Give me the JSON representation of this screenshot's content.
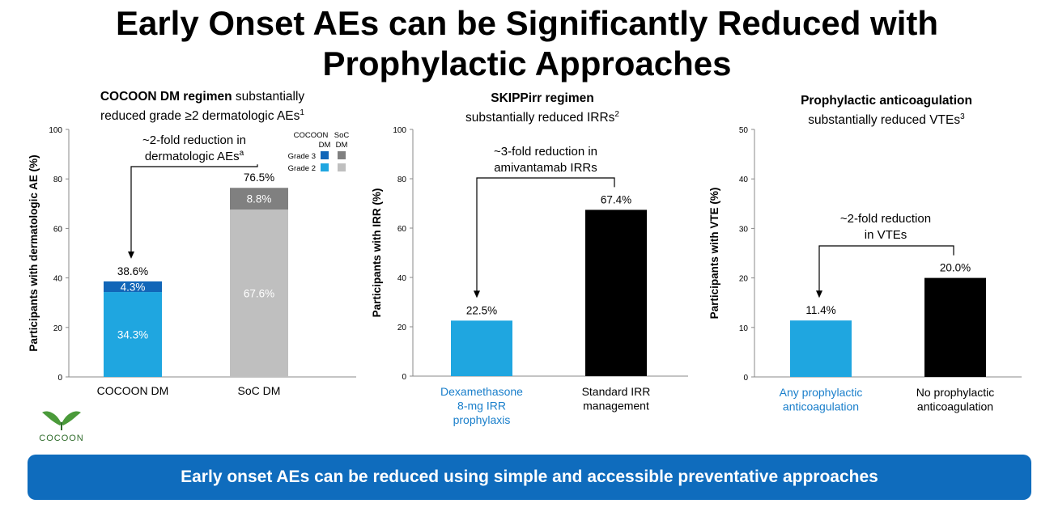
{
  "title_line1": "Early Onset AEs can be Significantly Reduced with",
  "title_line2": "Prophylactic Approaches",
  "footer": "Early onset AEs can be reduced using simple and accessible preventative approaches",
  "logo_text": "COCOON",
  "colors": {
    "accent": "#0f6cbd",
    "grade3_cocoon": "#1166b8",
    "grade2_cocoon": "#1fa6e0",
    "grade3_soc": "#808080",
    "grade2_soc": "#bfbfbf",
    "black": "#000000",
    "blue_label": "#1a7fcb"
  },
  "panels": {
    "p1": {
      "heading_bold": "COCOON DM regimen",
      "heading_rest": " substantially",
      "line2": "reduced grade ≥2 dermatologic AEs",
      "sup": "1"
    },
    "p2": {
      "heading_bold": "SKIPPirr regimen",
      "line2": "substantially reduced IRRs",
      "sup": "2"
    },
    "p3": {
      "heading_bold": "Prophylactic anticoagulation",
      "line2": "substantially reduced VTEs",
      "sup": "3"
    }
  },
  "chart_data": [
    {
      "type": "bar",
      "stacked": true,
      "ylabel": "Participants with dermatologic AE (%)",
      "ylim": [
        0,
        100
      ],
      "yticks": [
        0,
        20,
        40,
        60,
        80,
        100
      ],
      "categories": [
        "COCOON DM",
        "SoC DM"
      ],
      "series": [
        {
          "name": "Grade 2",
          "values": [
            34.3,
            67.6
          ],
          "labels": [
            "34.3%",
            "67.6%"
          ]
        },
        {
          "name": "Grade 3",
          "values": [
            4.3,
            8.8
          ],
          "labels": [
            "4.3%",
            "8.8%"
          ]
        }
      ],
      "totals": [
        "38.6%",
        "76.5%"
      ],
      "legend": {
        "col_headers": [
          "COCOON DM",
          "SoC DM"
        ],
        "rows": [
          "Grade 3",
          "Grade 2"
        ],
        "placement": "top-right"
      },
      "annotation": [
        "~2-fold reduction in",
        "dermatologic AEs"
      ],
      "annotation_sup": "a"
    },
    {
      "type": "bar",
      "ylabel": "Participants with IRR (%)",
      "ylim": [
        0,
        100
      ],
      "yticks": [
        0,
        20,
        40,
        60,
        80,
        100
      ],
      "categories": [
        [
          "Dexamethasone",
          "8-mg IRR",
          "prophylaxis"
        ],
        [
          "Standard IRR",
          "management"
        ]
      ],
      "values": [
        22.5,
        67.4
      ],
      "labels": [
        "22.5%",
        "67.4%"
      ],
      "annotation": [
        "~3-fold reduction in",
        "amivantamab IRRs"
      ]
    },
    {
      "type": "bar",
      "ylabel": "Participants with VTE (%)",
      "ylim": [
        0,
        50
      ],
      "yticks": [
        0,
        10,
        20,
        30,
        40,
        50
      ],
      "categories": [
        [
          "Any prophylactic",
          "anticoagulation"
        ],
        [
          "No prophylactic",
          "anticoagulation"
        ]
      ],
      "values": [
        11.4,
        20.0
      ],
      "labels": [
        "11.4%",
        "20.0%"
      ],
      "annotation": [
        "~2-fold reduction",
        "in VTEs"
      ]
    }
  ]
}
